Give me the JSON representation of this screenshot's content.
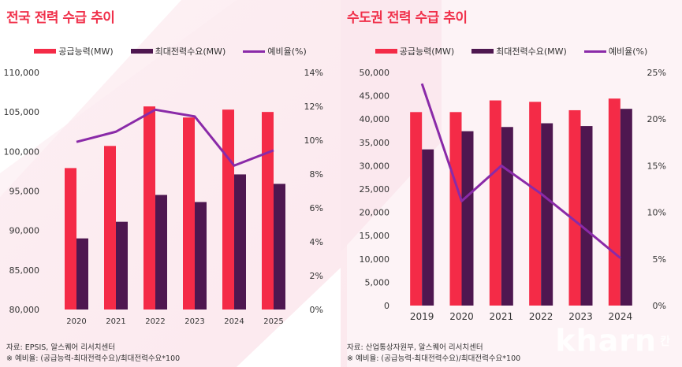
{
  "colors": {
    "supply": "#f42b47",
    "demand": "#4e1750",
    "ratio": "#8a2aa8",
    "title": "#f0304a"
  },
  "chart_data": [
    {
      "type": "bar",
      "title": "전국 전력 수급 추이",
      "categories": [
        "2020",
        "2021",
        "2022",
        "2023",
        "2024",
        "2025"
      ],
      "series": [
        {
          "name": "공급능력(MW)",
          "type": "bar",
          "axis": "left",
          "values": [
            97900,
            100700,
            105700,
            104300,
            105300,
            105000
          ]
        },
        {
          "name": "최대전력수요(MW)",
          "type": "bar",
          "axis": "left",
          "values": [
            89000,
            91100,
            94500,
            93600,
            97100,
            95900
          ]
        },
        {
          "name": "예비율(%)",
          "type": "line",
          "axis": "right",
          "values": [
            9.9,
            10.5,
            11.8,
            11.4,
            8.5,
            9.4
          ]
        }
      ],
      "ylim": [
        80000,
        110000
      ],
      "yticks": [
        "80,000",
        "85,000",
        "90,000",
        "95,000",
        "100,000",
        "105,000",
        "110,000"
      ],
      "y2lim": [
        0,
        14
      ],
      "y2ticks": [
        "0%",
        "2%",
        "4%",
        "6%",
        "8%",
        "10%",
        "12%",
        "14%"
      ],
      "legend": "top-center",
      "grid": false,
      "notes": [
        "자료: EPSIS, 알스퀘어 리서치센터",
        "※ 예비율: (공급능력-최대전력수요)/최대전력수요*100"
      ]
    },
    {
      "type": "bar",
      "title": "수도권 전력 수급 추이",
      "categories": [
        "2019",
        "2020",
        "2021",
        "2022",
        "2023",
        "2024"
      ],
      "series": [
        {
          "name": "공급능력(MW)",
          "type": "bar",
          "axis": "left",
          "values": [
            41500,
            41500,
            44000,
            43700,
            41900,
            44400
          ]
        },
        {
          "name": "최대전력수요(MW)",
          "type": "bar",
          "axis": "left",
          "values": [
            33500,
            37400,
            38300,
            39100,
            38500,
            42200
          ]
        },
        {
          "name": "예비율(%)",
          "type": "line",
          "axis": "right",
          "values": [
            23.8,
            11.2,
            15.0,
            12.0,
            8.6,
            5.1
          ]
        }
      ],
      "ylim": [
        0,
        50000
      ],
      "yticks": [
        "0",
        "5,000",
        "10,000",
        "15,000",
        "20,000",
        "25,000",
        "30,000",
        "35,000",
        "40,000",
        "45,000",
        "50,000"
      ],
      "y2lim": [
        0,
        25
      ],
      "y2ticks": [
        "0%",
        "5%",
        "10%",
        "15%",
        "20%",
        "25%"
      ],
      "legend": "top-center",
      "grid": false,
      "notes": [
        "자료: 산업통상자원부, 알스퀘어 리서치센터",
        "※ 예비율: (공급능력-최대전력수요)/최대전력수요*100"
      ]
    }
  ],
  "watermark": {
    "text": "kharn",
    "suffix": "칸"
  }
}
